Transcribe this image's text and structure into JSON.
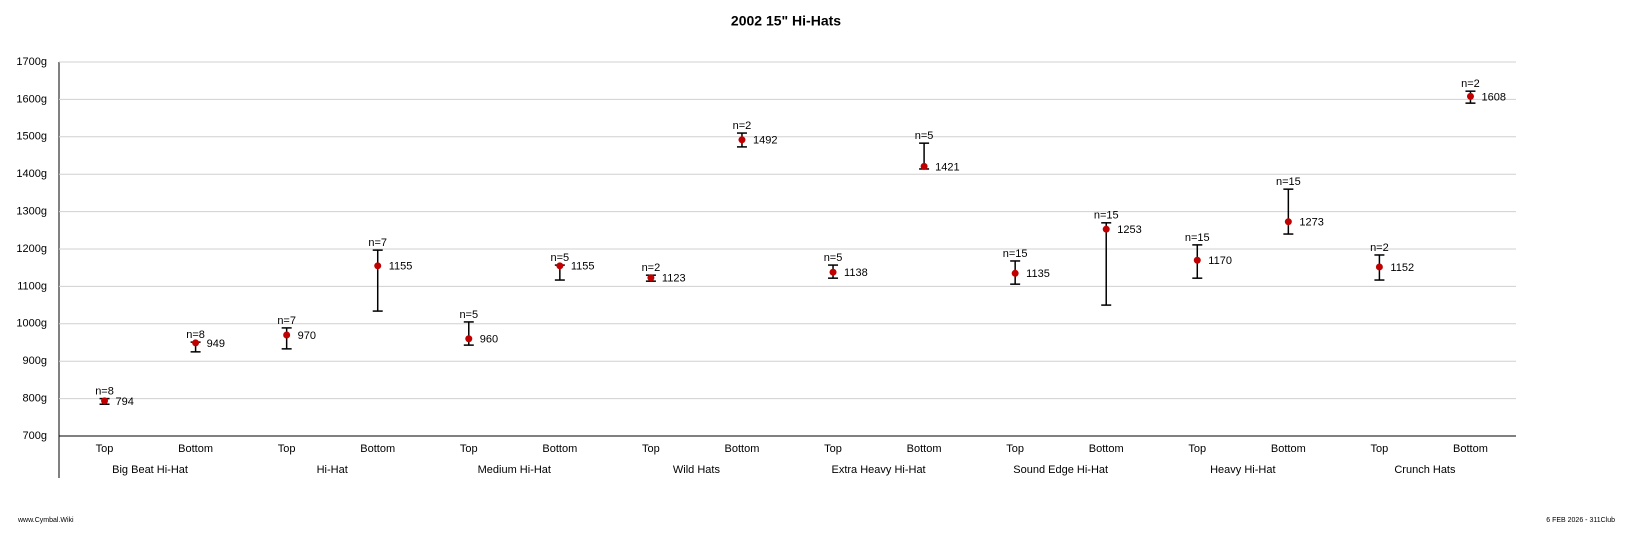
{
  "chart_data": {
    "type": "errorbar",
    "title": "2002 15\" Hi-Hats",
    "categories": [
      "Top",
      "Bottom",
      "Top",
      "Bottom",
      "Top",
      "Bottom",
      "Top",
      "Bottom",
      "Top",
      "Bottom",
      "Top",
      "Bottom",
      "Top",
      "Bottom",
      "Top",
      "Bottom"
    ],
    "groups": [
      "Big Beat Hi-Hat",
      "Hi-Hat",
      "Medium Hi-Hat",
      "Wild Hats",
      "Extra Heavy Hi-Hat",
      "Sound Edge Hi-Hat",
      "Heavy Hi-Hat",
      "Crunch Hats"
    ],
    "values": [
      794,
      949,
      970,
      1155,
      960,
      1155,
      1123,
      1492,
      1138,
      1421,
      1135,
      1253,
      1170,
      1273,
      1152,
      1608
    ],
    "high": [
      800,
      951,
      989,
      1197,
      1005,
      1157,
      1130,
      1510,
      1157,
      1483,
      1168,
      1270,
      1211,
      1360,
      1184,
      1622
    ],
    "low": [
      785,
      925,
      933,
      1034,
      943,
      1117,
      1114,
      1473,
      1122,
      1414,
      1106,
      1050,
      1122,
      1240,
      1117,
      1590
    ],
    "n_labels": [
      "n=8",
      "n=8",
      "n=7",
      "n=7",
      "n=5",
      "n=5",
      "n=2",
      "n=2",
      "n=5",
      "n=5",
      "n=15",
      "n=15",
      "n=15",
      "n=15",
      "n=2",
      "n=2"
    ],
    "color": "#c00000",
    "ylim": [
      700,
      1700
    ],
    "yticks": [
      {
        "value": 700,
        "label": "700g"
      },
      {
        "value": 800,
        "label": "800g"
      },
      {
        "value": 900,
        "label": "900g"
      },
      {
        "value": 1000,
        "label": "1000g"
      },
      {
        "value": 1100,
        "label": "1100g"
      },
      {
        "value": 1200,
        "label": "1200g"
      },
      {
        "value": 1300,
        "label": "1300g"
      },
      {
        "value": 1400,
        "label": "1400g"
      },
      {
        "value": 1500,
        "label": "1500g"
      },
      {
        "value": 1600,
        "label": "1600g"
      },
      {
        "value": 1700,
        "label": "1700g"
      }
    ],
    "grid": true,
    "footer_left": "www.Cymbal.Wiki",
    "footer_right": "6 FEB 2026 - 311Club"
  }
}
